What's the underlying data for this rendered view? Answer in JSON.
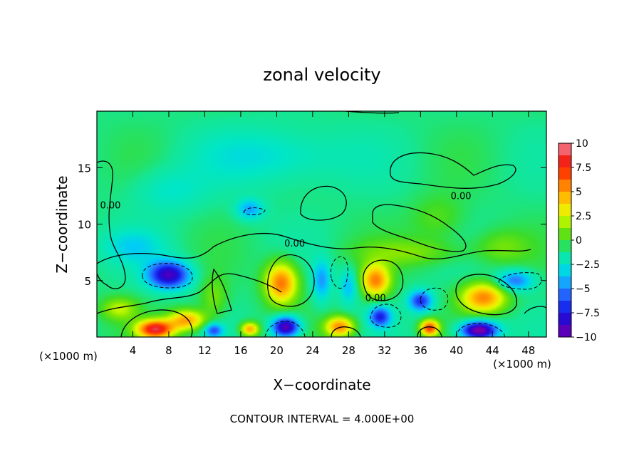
{
  "chart_data": {
    "type": "heatmap",
    "title": "zonal velocity",
    "xlabel": "X−coordinate",
    "ylabel": "Z−coordinate",
    "x_unit_left": "(×1000 m)",
    "x_unit_right": "(×1000 m)",
    "footer": "CONTOUR INTERVAL = 4.000E+00",
    "xlim": [
      0,
      50
    ],
    "ylim": [
      0,
      20
    ],
    "x_ticks": [
      4,
      8,
      12,
      16,
      20,
      24,
      28,
      32,
      36,
      40,
      44,
      48
    ],
    "x_tick_labels": [
      "4",
      "8",
      "12",
      "16",
      "20",
      "24",
      "28",
      "32",
      "36",
      "40",
      "44",
      "48"
    ],
    "y_ticks": [
      5,
      10,
      15
    ],
    "y_tick_labels": [
      "5",
      "10",
      "15"
    ],
    "colorbar": {
      "range": [
        -10,
        10
      ],
      "ticks": [
        10,
        7.5,
        5,
        2.5,
        0,
        -2.5,
        -5,
        -7.5,
        -10
      ],
      "tick_labels": [
        "10",
        "7.5",
        "5",
        "2.5",
        "0",
        "−2.5",
        "−5",
        "−7.5",
        "−10"
      ]
    },
    "contour_labels": [
      {
        "text": "0.00",
        "x": 1.5,
        "z": 11.4
      },
      {
        "text": "0.00",
        "x": 22.0,
        "z": 8.0
      },
      {
        "text": "0.00",
        "x": 31.0,
        "z": 3.2
      },
      {
        "text": "0.00",
        "x": 40.5,
        "z": 12.2
      }
    ],
    "features": [
      {
        "x": 8,
        "z": 5.5,
        "sx": 2.3,
        "sz": 1.2,
        "value": -8
      },
      {
        "x": 6.5,
        "z": 0.7,
        "sx": 2.0,
        "sz": 0.8,
        "value": 9.5
      },
      {
        "x": 10,
        "z": 1.5,
        "sx": 2.0,
        "sz": 0.9,
        "value": 6
      },
      {
        "x": 20.5,
        "z": 4.8,
        "sx": 1.8,
        "sz": 1.8,
        "value": 7
      },
      {
        "x": 21,
        "z": 0.9,
        "sx": 1.5,
        "sz": 0.9,
        "value": -9
      },
      {
        "x": 27,
        "z": 0.9,
        "sx": 1.6,
        "sz": 0.9,
        "value": 6.5
      },
      {
        "x": 31,
        "z": 5.0,
        "sx": 1.6,
        "sz": 1.4,
        "value": 6.5
      },
      {
        "x": 31.5,
        "z": 1.8,
        "sx": 1.2,
        "sz": 0.9,
        "value": -6
      },
      {
        "x": 36,
        "z": 3.2,
        "sx": 1.3,
        "sz": 0.9,
        "value": -6
      },
      {
        "x": 37,
        "z": 0.8,
        "sx": 1.0,
        "sz": 0.7,
        "value": 8
      },
      {
        "x": 43,
        "z": 3.5,
        "sx": 2.5,
        "sz": 1.3,
        "value": 6.5
      },
      {
        "x": 42.5,
        "z": 0.6,
        "sx": 2.0,
        "sz": 0.8,
        "value": -10
      },
      {
        "x": 46.5,
        "z": 5.0,
        "sx": 2.0,
        "sz": 0.9,
        "value": -4.5
      },
      {
        "x": 13,
        "z": 0.6,
        "sx": 1.0,
        "sz": 0.6,
        "value": -5
      },
      {
        "x": 17,
        "z": 0.7,
        "sx": 1.0,
        "sz": 0.6,
        "value": 6
      },
      {
        "x": 25,
        "z": 5.0,
        "sx": 1.0,
        "sz": 1.8,
        "value": -3.5
      },
      {
        "x": 28,
        "z": 4.5,
        "sx": 1.0,
        "sz": 1.5,
        "value": -3
      },
      {
        "x": 17,
        "z": 11.3,
        "sx": 1.5,
        "sz": 0.9,
        "value": -3.5
      },
      {
        "x": 2.5,
        "z": 2.5,
        "sx": 2.0,
        "sz": 1.0,
        "value": 3
      },
      {
        "x": 13,
        "z": 3.5,
        "sx": 1.5,
        "sz": 1.8,
        "value": 2
      },
      {
        "x": 4,
        "z": 8.0,
        "sx": 3.5,
        "sz": 1.5,
        "value": -2
      },
      {
        "x": 20,
        "z": 16.0,
        "sx": 8.0,
        "sz": 2.5,
        "value": -2
      },
      {
        "x": 8,
        "z": 13.0,
        "sx": 4.0,
        "sz": 2.0,
        "value": -1.5
      },
      {
        "x": 35,
        "z": 7.5,
        "sx": 6.0,
        "sz": 1.2,
        "value": 2
      },
      {
        "x": 45,
        "z": 8.0,
        "sx": 3.0,
        "sz": 1.5,
        "value": 1.8
      },
      {
        "x": 38,
        "z": 10.5,
        "sx": 3.0,
        "sz": 2.0,
        "value": 1.5
      }
    ]
  }
}
